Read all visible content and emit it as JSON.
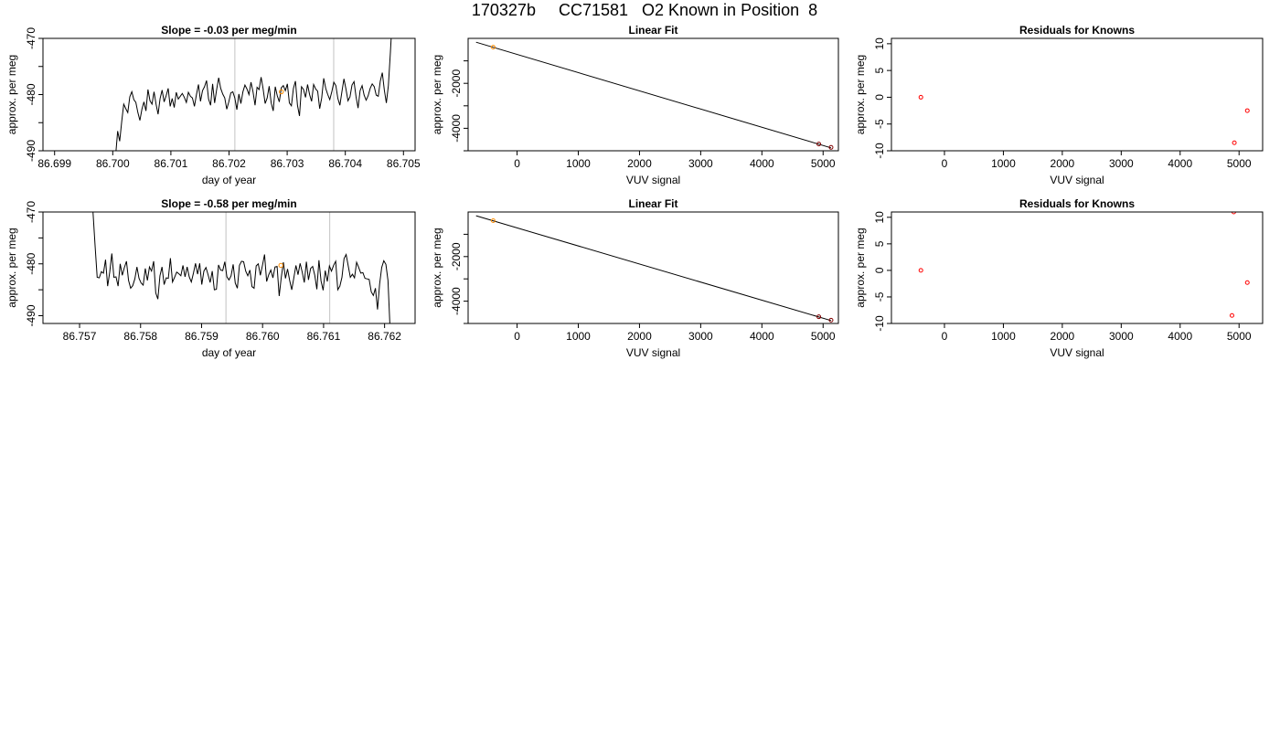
{
  "page": {
    "title": "170327b     CC71581   O2 Known in Position  8"
  },
  "chart_data": [
    {
      "type": "line",
      "title": "Slope =  -0.03  per meg/min",
      "xlabel": "day of year",
      "ylabel": "approx. per meg",
      "xlim": [
        86.6988,
        86.7052
      ],
      "ylim": [
        -490,
        -470
      ],
      "xticks": [
        "86.699",
        "86.700",
        "86.701",
        "86.702",
        "86.703",
        "86.704",
        "86.705"
      ],
      "xtick_values": [
        86.699,
        86.7,
        86.701,
        86.702,
        86.703,
        86.704,
        86.705
      ],
      "yticks": [
        "-490",
        "-480",
        "-470"
      ],
      "ytick_values": [
        -490,
        -480,
        -470
      ],
      "ytick_minor": [
        -485,
        -475
      ],
      "vlines": [
        86.7021,
        86.7038
      ],
      "marker": {
        "x": 86.7029,
        "y": -479.5
      },
      "series_color": "#000000",
      "vline_color": "#cccccc",
      "marker_color": "#ff8c00",
      "series": {
        "x_start": 86.70005,
        "x_end": 86.70481,
        "y": [
          -490.8,
          -486.5,
          -488.3,
          -484.8,
          -481.7,
          -482.5,
          -483.2,
          -480.4,
          -479.5,
          -480.9,
          -481.4,
          -483.2,
          -484.6,
          -482.6,
          -481.3,
          -482.9,
          -479.1,
          -481.1,
          -481.7,
          -479.5,
          -481.7,
          -483.5,
          -480.7,
          -479.2,
          -481.3,
          -480.2,
          -478.9,
          -482.1,
          -480.7,
          -482.3,
          -479.6,
          -480.8,
          -480.3,
          -479.8,
          -480.5,
          -481.4,
          -479.6,
          -480.3,
          -480.6,
          -482.1,
          -480.0,
          -478.2,
          -481.2,
          -479.3,
          -478.6,
          -477.5,
          -480.8,
          -481.9,
          -478.1,
          -481.5,
          -479.1,
          -477.0,
          -478.9,
          -479.9,
          -480.6,
          -482.6,
          -481.3,
          -479.7,
          -479.5,
          -480.6,
          -482.7,
          -479.9,
          -481.6,
          -479.5,
          -478.3,
          -479.0,
          -480.0,
          -477.8,
          -479.5,
          -481.9,
          -478.7,
          -479.1,
          -476.9,
          -479.0,
          -481.6,
          -480.6,
          -478.5,
          -481.5,
          -482.9,
          -478.6,
          -480.2,
          -481.3,
          -478.8,
          -478.4,
          -479.3,
          -478.1,
          -481.5,
          -482.0,
          -478.9,
          -477.6,
          -481.9,
          -483.8,
          -478.6,
          -479.1,
          -480.5,
          -478.2,
          -480.0,
          -481.2,
          -478.2,
          -479.0,
          -479.4,
          -482.5,
          -480.6,
          -477.1,
          -478.9,
          -480.0,
          -480.9,
          -479.5,
          -477.8,
          -478.4,
          -480.7,
          -481.9,
          -479.5,
          -477.2,
          -479.0,
          -481.1,
          -480.4,
          -478.3,
          -477.7,
          -480.4,
          -482.4,
          -479.3,
          -478.4,
          -480.1,
          -481.0,
          -480.2,
          -478.9,
          -478.1,
          -478.6,
          -480.1,
          -480.3,
          -477.6,
          -476.1,
          -479.2,
          -481.5,
          -478.4,
          -472.5,
          -466.0
        ]
      }
    },
    {
      "type": "line",
      "title": "Linear Fit",
      "xlabel": "VUV signal",
      "ylabel": "approx. per meg",
      "xlim": [
        -800,
        5250
      ],
      "ylim": [
        -5000,
        0
      ],
      "xticks": [
        "0",
        "1000",
        "2000",
        "3000",
        "4000",
        "5000"
      ],
      "xtick_values": [
        0,
        1000,
        2000,
        3000,
        4000,
        5000
      ],
      "yticks": [
        "-4000",
        "-2000"
      ],
      "ytick_values": [
        -4000,
        -2000
      ],
      "ytick_minor": [
        -5000,
        -3000,
        -1000
      ],
      "line": {
        "x": [
          -670,
          5130
        ],
        "y": [
          -170,
          -4870
        ]
      },
      "points": [
        {
          "x": -390,
          "y": -390,
          "color": "#ff8c00"
        },
        {
          "x": 4930,
          "y": -4700,
          "color": "#800000"
        },
        {
          "x": 5130,
          "y": -4850,
          "color": "#800000"
        }
      ]
    },
    {
      "type": "scatter",
      "title": "Residuals for Knowns",
      "xlabel": "VUV signal",
      "ylabel": "approx. per meg",
      "xlim": [
        -900,
        5400
      ],
      "ylim": [
        -10,
        11
      ],
      "xticks": [
        "0",
        "1000",
        "2000",
        "3000",
        "4000",
        "5000"
      ],
      "xtick_values": [
        0,
        1000,
        2000,
        3000,
        4000,
        5000
      ],
      "yticks": [
        "-10",
        "-5",
        "0",
        "5",
        "10"
      ],
      "ytick_values": [
        -10,
        -5,
        0,
        5,
        10
      ],
      "points": [
        {
          "x": -400,
          "y": 0.0
        },
        {
          "x": 4920,
          "y": -8.5
        },
        {
          "x": 5140,
          "y": -2.5
        }
      ],
      "point_color": "#ff0000"
    },
    {
      "type": "line",
      "title": "Slope =  -0.58  per meg/min",
      "xlabel": "day of year",
      "ylabel": "approx. per meg",
      "xlim": [
        86.7564,
        86.7625
      ],
      "ylim": [
        -491.5,
        -470
      ],
      "xticks": [
        "86.757",
        "86.758",
        "86.759",
        "86.760",
        "86.761",
        "86.762"
      ],
      "xtick_values": [
        86.757,
        86.758,
        86.759,
        86.76,
        86.761,
        86.762
      ],
      "yticks": [
        "-490",
        "-480",
        "-470"
      ],
      "ytick_values": [
        -490,
        -480,
        -470
      ],
      "ytick_minor": [
        -485,
        -475
      ],
      "vlines": [
        86.7594,
        86.7611
      ],
      "marker": {
        "x": 86.7603,
        "y": -480.3
      },
      "series_color": "#000000",
      "vline_color": "#cccccc",
      "marker_color": "#ff8c00",
      "series": {
        "x_start": 86.75722,
        "x_end": 86.76209,
        "y": [
          -470,
          -476.5,
          -482.6,
          -482.7,
          -481.5,
          -481.8,
          -479.2,
          -484.3,
          -481.6,
          -478.0,
          -482.6,
          -482.5,
          -484.3,
          -480.0,
          -482.2,
          -480.7,
          -479.5,
          -483.2,
          -484.7,
          -484.2,
          -482.9,
          -480.6,
          -482.8,
          -483.7,
          -484.1,
          -480.9,
          -483.2,
          -480.6,
          -481.4,
          -479.5,
          -485.6,
          -486.8,
          -482.3,
          -480.6,
          -484.0,
          -482.7,
          -482.8,
          -478.9,
          -483.5,
          -482.6,
          -481.6,
          -481.9,
          -482.3,
          -480.3,
          -482.5,
          -480.6,
          -482.5,
          -483.5,
          -481.8,
          -479.9,
          -482.0,
          -479.9,
          -484.0,
          -481.4,
          -480.7,
          -482.1,
          -483.6,
          -481.4,
          -485.0,
          -484.9,
          -480.2,
          -481.2,
          -481.3,
          -479.6,
          -482.5,
          -483.1,
          -482.3,
          -480.1,
          -483.7,
          -484.7,
          -480.3,
          -479.5,
          -479.6,
          -481.4,
          -482.3,
          -481.2,
          -484.4,
          -484.7,
          -480.4,
          -480.0,
          -482.2,
          -480.3,
          -478.2,
          -483.4,
          -482.1,
          -481.2,
          -482.7,
          -480.6,
          -480.5,
          -486.2,
          -482.6,
          -479.7,
          -482.8,
          -481.0,
          -483.2,
          -485.0,
          -482.7,
          -480.3,
          -482.1,
          -479.9,
          -481.6,
          -483.6,
          -479.6,
          -483.1,
          -480.9,
          -480.5,
          -482.2,
          -484.9,
          -479.3,
          -483.3,
          -485.1,
          -481.3,
          -483.4,
          -480.4,
          -481.4,
          -480.3,
          -479.5,
          -485.0,
          -484.3,
          -482.6,
          -479.0,
          -478.2,
          -480.4,
          -482.6,
          -482.0,
          -482.7,
          -479.7,
          -480.7,
          -481.8,
          -481.7,
          -482.8,
          -482.9,
          -483.0,
          -485.4,
          -486.1,
          -484.7,
          -488.8,
          -483.9,
          -480.7,
          -479.4,
          -480.1,
          -483.2,
          -492.5
        ]
      }
    },
    {
      "type": "line",
      "title": "Linear Fit",
      "xlabel": "VUV signal",
      "ylabel": "approx. per meg",
      "xlim": [
        -800,
        5250
      ],
      "ylim": [
        -5000,
        0
      ],
      "xticks": [
        "0",
        "1000",
        "2000",
        "3000",
        "4000",
        "5000"
      ],
      "xtick_values": [
        0,
        1000,
        2000,
        3000,
        4000,
        5000
      ],
      "yticks": [
        "-4000",
        "-2000"
      ],
      "ytick_values": [
        -4000,
        -2000
      ],
      "ytick_minor": [
        -5000,
        -3000,
        -1000
      ],
      "line": {
        "x": [
          -670,
          5130
        ],
        "y": [
          -170,
          -4870
        ]
      },
      "points": [
        {
          "x": -390,
          "y": -390,
          "color": "#ff8c00"
        },
        {
          "x": 4930,
          "y": -4700,
          "color": "#800000"
        },
        {
          "x": 5130,
          "y": -4850,
          "color": "#800000"
        }
      ]
    },
    {
      "type": "scatter",
      "title": "Residuals for Knowns",
      "xlabel": "VUV signal",
      "ylabel": "approx. per meg",
      "xlim": [
        -900,
        5400
      ],
      "ylim": [
        -10,
        11
      ],
      "xticks": [
        "0",
        "1000",
        "2000",
        "3000",
        "4000",
        "5000"
      ],
      "xtick_values": [
        0,
        1000,
        2000,
        3000,
        4000,
        5000
      ],
      "yticks": [
        "-10",
        "-5",
        "0",
        "5",
        "10"
      ],
      "ytick_values": [
        -10,
        -5,
        0,
        5,
        10
      ],
      "points": [
        {
          "x": -400,
          "y": 0.0
        },
        {
          "x": 4910,
          "y": 11.0
        },
        {
          "x": 4880,
          "y": -8.5
        },
        {
          "x": 5140,
          "y": -2.3
        }
      ],
      "point_color": "#ff0000"
    }
  ]
}
